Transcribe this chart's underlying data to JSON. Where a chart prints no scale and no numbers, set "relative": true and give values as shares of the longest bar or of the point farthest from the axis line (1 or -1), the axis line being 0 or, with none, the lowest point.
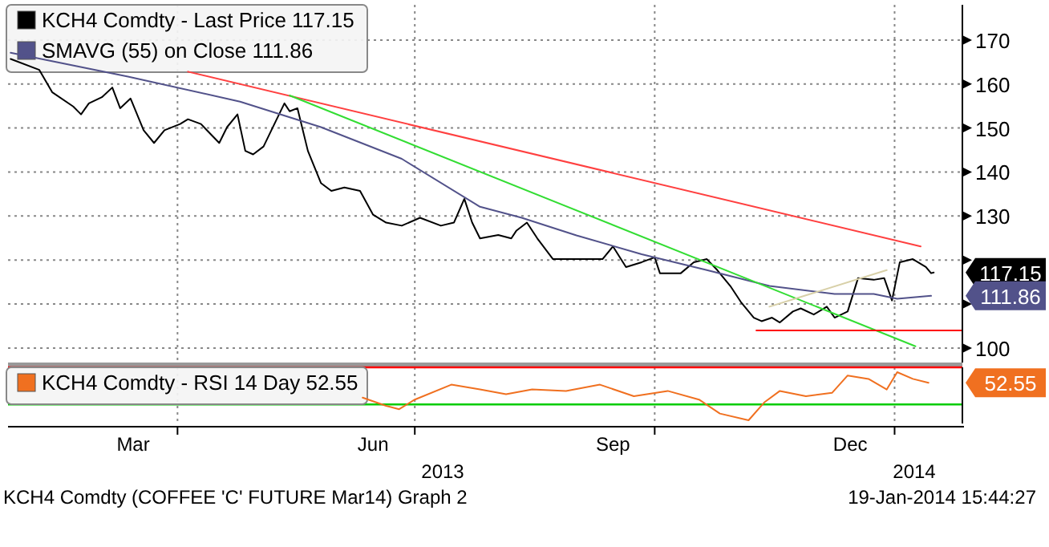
{
  "chart_data": [
    {
      "type": "line",
      "xlim": [
        "2013-01-26",
        "2014-01-27"
      ],
      "ylim": [
        96.7,
        178
      ],
      "yticks": [
        100,
        {
          "value": 110,
          "label": null
        },
        {
          "value": 120,
          "label": null
        },
        130,
        140,
        150,
        160,
        170
      ],
      "xticks": [
        {
          "value": "2013-04-01",
          "label": null
        },
        {
          "value": "2013-07-01",
          "label": null
        },
        {
          "value": "2013-10-01",
          "label": null
        },
        {
          "value": "2014-01-01",
          "label": null
        }
      ],
      "tick_labels": "y",
      "grid": true,
      "legend": "top left",
      "series": [
        {
          "name": "KCH4 Comdty - Last Price 117.15",
          "color": "#000000",
          "x": [
            "2013-01-27",
            "2013-02-07",
            "2013-02-12",
            "2013-02-20",
            "2013-02-23",
            "2013-02-26",
            "2013-03-03",
            "2013-03-07",
            "2013-03-10",
            "2013-03-14",
            "2013-03-19",
            "2013-03-23",
            "2013-03-27",
            "2013-04-02",
            "2013-04-05",
            "2013-04-10",
            "2013-04-17",
            "2013-04-20",
            "2013-04-24",
            "2013-04-27",
            "2013-04-30",
            "2013-05-04",
            "2013-05-07",
            "2013-05-12",
            "2013-05-14",
            "2013-05-17",
            "2013-05-21",
            "2013-05-26",
            "2013-05-30",
            "2013-06-04",
            "2013-06-10",
            "2013-06-15",
            "2013-06-20",
            "2013-06-26",
            "2013-07-03",
            "2013-07-11",
            "2013-07-16",
            "2013-07-20",
            "2013-07-23",
            "2013-07-26",
            "2013-08-02",
            "2013-08-07",
            "2013-08-09",
            "2013-08-13",
            "2013-08-17",
            "2013-08-23",
            "2013-09-01",
            "2013-09-11",
            "2013-09-15",
            "2013-09-20",
            "2013-09-26",
            "2013-10-01",
            "2013-10-03",
            "2013-10-11",
            "2013-10-16",
            "2013-10-21",
            "2013-10-25",
            "2013-10-30",
            "2013-11-03",
            "2013-11-08",
            "2013-11-11",
            "2013-11-15",
            "2013-11-18",
            "2013-11-23",
            "2013-11-26",
            "2013-12-01",
            "2013-12-06",
            "2013-12-09",
            "2013-12-14",
            "2013-12-18",
            "2013-12-24",
            "2013-12-28",
            "2013-12-31",
            "2014-01-03",
            "2014-01-08",
            "2014-01-13",
            "2014-01-15",
            "2014-01-16"
          ],
          "values": [
            165.7,
            163.2,
            158.1,
            154.9,
            153.1,
            155.6,
            157.0,
            159.2,
            154.5,
            156.7,
            149.5,
            146.6,
            149.5,
            150.9,
            152.0,
            150.9,
            146.6,
            150.2,
            153.1,
            144.8,
            144.0,
            145.8,
            149.5,
            155.6,
            153.8,
            154.5,
            144.8,
            137.5,
            135.7,
            136.5,
            135.7,
            130.3,
            128.5,
            127.8,
            129.6,
            127.8,
            128.5,
            133.9,
            128.5,
            124.9,
            125.7,
            124.9,
            126.7,
            128.5,
            124.9,
            120.2,
            120.2,
            120.2,
            123.1,
            118.4,
            119.5,
            120.6,
            117.0,
            117.0,
            119.5,
            120.2,
            117.7,
            114.1,
            110.5,
            106.9,
            106.1,
            106.9,
            105.8,
            108.3,
            109.0,
            107.6,
            109.4,
            106.9,
            108.3,
            115.9,
            115.5,
            115.9,
            110.8,
            119.5,
            120.2,
            118.4,
            117.0,
            117.15
          ]
        },
        {
          "name": "SMAVG (55) on Close 111.86",
          "color": "#52528a",
          "x": [
            "2013-01-27",
            "2013-03-13",
            "2013-04-25",
            "2013-05-26",
            "2013-06-26",
            "2013-07-26",
            "2013-08-11",
            "2013-09-01",
            "2013-09-26",
            "2013-10-21",
            "2013-11-14",
            "2013-12-09",
            "2013-12-24",
            "2014-01-02",
            "2014-01-15"
          ],
          "values": [
            167.1,
            161.7,
            156.0,
            150.2,
            143.0,
            132.1,
            129.6,
            125.6,
            121.3,
            117.7,
            114.1,
            112.3,
            112.3,
            111.2,
            111.86
          ]
        },
        {
          "type": "line",
          "color": "#ff4040",
          "x": [
            "2013-04-05",
            "2014-01-11"
          ],
          "values": [
            162.8,
            123.1
          ]
        },
        {
          "type": "line",
          "color": "#33dd33",
          "x": [
            "2013-05-14",
            "2014-01-09"
          ],
          "values": [
            157.4,
            100.4
          ]
        },
        {
          "type": "line",
          "color": "#ff0000",
          "x": [
            "2013-11-09",
            "2014-01-27"
          ],
          "values": [
            104,
            104
          ]
        },
        {
          "type": "line",
          "color": "#d8d0a8",
          "x": [
            "2013-11-14",
            "2013-12-29"
          ],
          "values": [
            109.4,
            117.7
          ]
        }
      ],
      "annotations": [
        {
          "text": "117.15",
          "x": "2014-01-16",
          "y": 117.15
        },
        {
          "text": "111.86",
          "x": "2014-01-15",
          "y": 111.86
        }
      ]
    },
    {
      "type": "line",
      "relative": true,
      "xlim": [
        "2013-01-26",
        "2014-01-27"
      ],
      "xticks": [
        {
          "value": "2013-03-15",
          "label": "Mar"
        },
        {
          "value": "2013-06-15",
          "label": "Jun"
        },
        {
          "value": "2013-09-15",
          "label": "Sep"
        },
        {
          "value": "2013-12-15",
          "label": "Dec"
        },
        {
          "value": "2013-04-01",
          "label": null
        },
        {
          "value": "2013-07-01",
          "label": null
        },
        {
          "value": "2013-10-01",
          "label": null
        },
        {
          "value": "2014-01-01",
          "label": null
        }
      ],
      "tick_labels": "x",
      "grid": "x",
      "legend": "top left",
      "ref_lines": [
        {
          "axis": "y",
          "value": 1.1,
          "color": "#ff0000"
        },
        {
          "axis": "y",
          "value": 0.33,
          "color": "#00cc00"
        }
      ],
      "series": [
        {
          "name": "KCH4 Comdty - RSI 14 Day 52.55",
          "color": "#f07020",
          "x": [
            "2013-06-11",
            "2013-06-20",
            "2013-06-25",
            "2013-07-01",
            "2013-07-15",
            "2013-07-26",
            "2013-08-05",
            "2013-08-15",
            "2013-08-28",
            "2013-09-10",
            "2013-09-23",
            "2013-10-06",
            "2013-10-18",
            "2013-10-26",
            "2013-11-06",
            "2013-11-12",
            "2013-11-18",
            "2013-11-28",
            "2013-12-08",
            "2013-12-14",
            "2013-12-22",
            "2013-12-29",
            "2014-01-02",
            "2014-01-08",
            "2014-01-14"
          ],
          "values": [
            0.47,
            0.3,
            0.23,
            0.43,
            0.74,
            0.64,
            0.54,
            0.64,
            0.61,
            0.74,
            0.5,
            0.61,
            0.43,
            0.14,
            0,
            0.37,
            0.61,
            0.5,
            0.57,
            0.93,
            0.86,
            0.64,
            1,
            0.86,
            0.78
          ]
        }
      ],
      "annotations": [
        "52.55",
        "2013",
        "2014",
        "KCH4 Comdty (COFFEE 'C' FUTURE Mar14) Graph 2",
        "19-Jan-2014 15:44:27"
      ]
    }
  ]
}
